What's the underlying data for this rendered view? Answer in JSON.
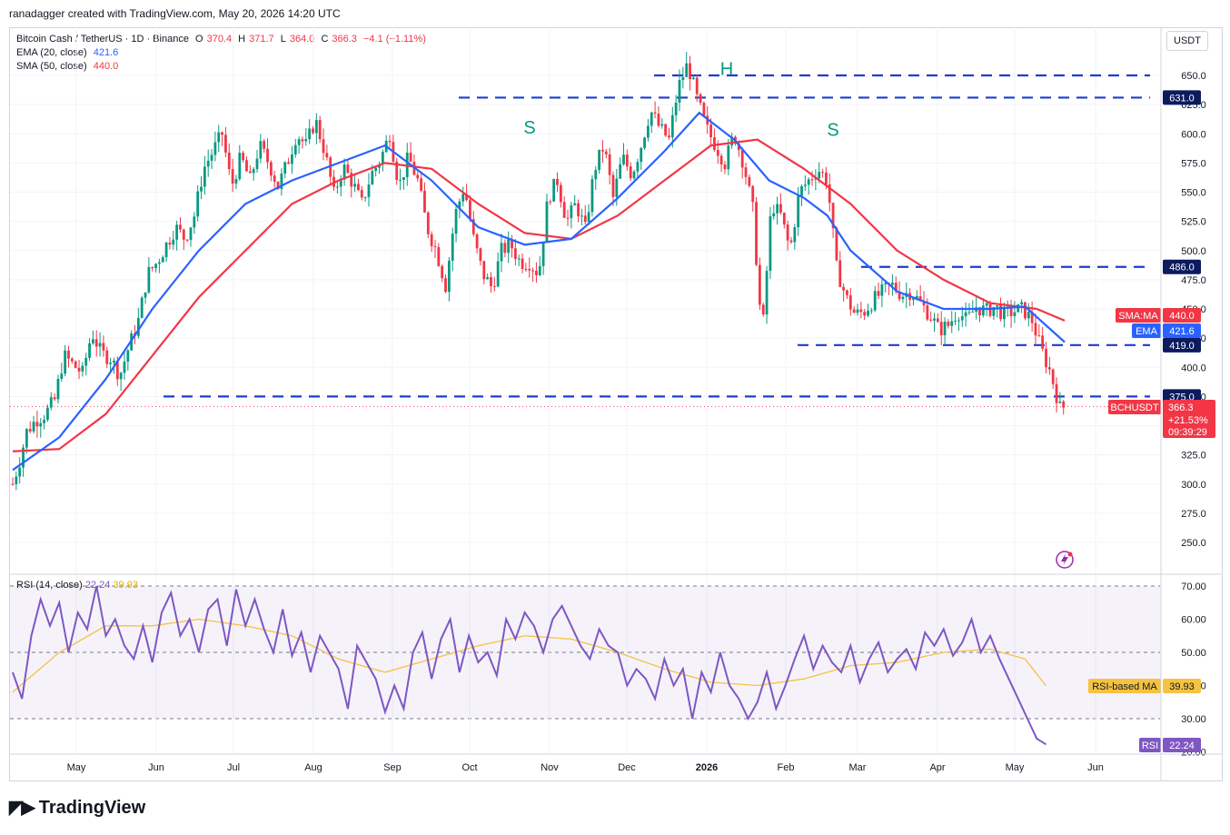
{
  "credit": "ranadagger created with TradingView.com, May 20, 2026 14:20 UTC",
  "legend": {
    "symbol": "Bitcoin Cash / TetherUS · 1D · Binance",
    "o_label": "O",
    "o": "370.4",
    "h_label": "H",
    "h": "371.7",
    "l_label": "L",
    "l": "364.0",
    "c_label": "C",
    "c": "366.3",
    "change": "−4.1 (−1.11%)",
    "ema_label": "EMA (20, close)",
    "ema_value": "421.6",
    "sma_label": "SMA (50, close)",
    "sma_value": "440.0"
  },
  "rsi_legend": {
    "label": "RSI (14, close)",
    "rsi_value": "22.24",
    "ma_value": "39.93"
  },
  "currency": "USDT",
  "logo": "TradingView",
  "colors": {
    "up": "#089981",
    "down": "#f23645",
    "ema": "#2962ff",
    "sma": "#f23645",
    "rsi": "#7e57c2",
    "rsi_ma": "#f5c242",
    "level": "#1e3ccf"
  },
  "chart_data": {
    "type": "candlestick",
    "title": "Bitcoin Cash / TetherUS · 1D · Binance",
    "price_axis": {
      "range": [
        240,
        670
      ],
      "ticks": [
        "650.0",
        "625.0",
        "600.0",
        "575.0",
        "550.0",
        "525.0",
        "500.0",
        "475.0",
        "450.0",
        "425.0",
        "400.0",
        "375.0",
        "350.0",
        "325.0",
        "300.0",
        "275.0",
        "250.0"
      ]
    },
    "time_axis": {
      "ticks": [
        "May",
        "Jun",
        "Jul",
        "Aug",
        "Sep",
        "Oct",
        "Nov",
        "Dec",
        "2026",
        "Feb",
        "Mar",
        "Apr",
        "May",
        "Jun"
      ]
    },
    "levels": [
      {
        "value": 650,
        "label": ""
      },
      {
        "value": 631.0,
        "label": "631.0"
      },
      {
        "value": 486.0,
        "label": "486.0"
      },
      {
        "value": 419.0,
        "label": "419.0"
      },
      {
        "value": 375.0,
        "label": "375.0"
      }
    ],
    "pattern_labels": [
      {
        "text": "S",
        "near": "Oct-Nov",
        "price": 605
      },
      {
        "text": "H",
        "near": "2026",
        "price": 655
      },
      {
        "text": "S",
        "near": "Feb",
        "price": 603
      }
    ],
    "close_path": [
      [
        0,
        300
      ],
      [
        6,
        320
      ],
      [
        12,
        345
      ],
      [
        20,
        355
      ],
      [
        28,
        360
      ],
      [
        36,
        372
      ],
      [
        44,
        410
      ],
      [
        52,
        402
      ],
      [
        60,
        395
      ],
      [
        68,
        430
      ],
      [
        76,
        412
      ],
      [
        84,
        408
      ],
      [
        92,
        393
      ],
      [
        100,
        418
      ],
      [
        108,
        440
      ],
      [
        116,
        480
      ],
      [
        124,
        490
      ],
      [
        132,
        505
      ],
      [
        140,
        520
      ],
      [
        148,
        510
      ],
      [
        156,
        530
      ],
      [
        164,
        570
      ],
      [
        172,
        585
      ],
      [
        180,
        600
      ],
      [
        188,
        555
      ],
      [
        196,
        580
      ],
      [
        204,
        560
      ],
      [
        212,
        590
      ],
      [
        220,
        575
      ],
      [
        228,
        555
      ],
      [
        236,
        575
      ],
      [
        244,
        600
      ],
      [
        252,
        590
      ],
      [
        260,
        612
      ],
      [
        268,
        585
      ],
      [
        276,
        548
      ],
      [
        284,
        572
      ],
      [
        292,
        558
      ],
      [
        300,
        540
      ],
      [
        308,
        565
      ],
      [
        316,
        578
      ],
      [
        324,
        600
      ],
      [
        332,
        555
      ],
      [
        340,
        580
      ],
      [
        348,
        560
      ],
      [
        356,
        520
      ],
      [
        364,
        500
      ],
      [
        372,
        470
      ],
      [
        380,
        530
      ],
      [
        388,
        555
      ],
      [
        396,
        510
      ],
      [
        404,
        480
      ],
      [
        412,
        468
      ],
      [
        420,
        500
      ],
      [
        428,
        505
      ],
      [
        436,
        490
      ],
      [
        444,
        490
      ],
      [
        452,
        480
      ],
      [
        460,
        545
      ],
      [
        468,
        560
      ],
      [
        476,
        525
      ],
      [
        484,
        540
      ],
      [
        492,
        518
      ],
      [
        500,
        570
      ],
      [
        508,
        590
      ],
      [
        516,
        545
      ],
      [
        524,
        580
      ],
      [
        532,
        565
      ],
      [
        540,
        590
      ],
      [
        548,
        620
      ],
      [
        556,
        605
      ],
      [
        564,
        595
      ],
      [
        572,
        640
      ],
      [
        580,
        660
      ],
      [
        588,
        630
      ],
      [
        596,
        605
      ],
      [
        604,
        590
      ],
      [
        612,
        575
      ],
      [
        620,
        600
      ],
      [
        628,
        575
      ],
      [
        636,
        535
      ],
      [
        644,
        425
      ],
      [
        652,
        540
      ],
      [
        660,
        530
      ],
      [
        668,
        500
      ],
      [
        676,
        550
      ],
      [
        684,
        560
      ],
      [
        692,
        570
      ],
      [
        700,
        560
      ],
      [
        708,
        485
      ],
      [
        716,
        460
      ],
      [
        724,
        445
      ],
      [
        732,
        448
      ],
      [
        740,
        458
      ],
      [
        748,
        465
      ],
      [
        756,
        470
      ],
      [
        764,
        462
      ],
      [
        772,
        465
      ],
      [
        780,
        455
      ],
      [
        788,
        445
      ],
      [
        796,
        432
      ],
      [
        804,
        436
      ],
      [
        812,
        448
      ],
      [
        820,
        440
      ],
      [
        828,
        452
      ],
      [
        836,
        448
      ],
      [
        844,
        452
      ],
      [
        852,
        445
      ],
      [
        860,
        448
      ],
      [
        868,
        450
      ],
      [
        876,
        440
      ],
      [
        884,
        415
      ],
      [
        892,
        395
      ],
      [
        900,
        365
      ],
      [
        904,
        366.3
      ]
    ],
    "ema20_path": [
      [
        0,
        312
      ],
      [
        40,
        340
      ],
      [
        80,
        390
      ],
      [
        120,
        450
      ],
      [
        160,
        500
      ],
      [
        200,
        540
      ],
      [
        240,
        560
      ],
      [
        280,
        575
      ],
      [
        320,
        590
      ],
      [
        360,
        560
      ],
      [
        400,
        520
      ],
      [
        440,
        505
      ],
      [
        480,
        510
      ],
      [
        520,
        545
      ],
      [
        560,
        585
      ],
      [
        590,
        618
      ],
      [
        620,
        595
      ],
      [
        650,
        560
      ],
      [
        680,
        545
      ],
      [
        700,
        530
      ],
      [
        720,
        500
      ],
      [
        760,
        465
      ],
      [
        800,
        450
      ],
      [
        840,
        450
      ],
      [
        870,
        452
      ],
      [
        904,
        421.6
      ]
    ],
    "sma50_path": [
      [
        0,
        328
      ],
      [
        40,
        330
      ],
      [
        80,
        360
      ],
      [
        120,
        410
      ],
      [
        160,
        460
      ],
      [
        200,
        500
      ],
      [
        240,
        540
      ],
      [
        280,
        560
      ],
      [
        320,
        575
      ],
      [
        360,
        570
      ],
      [
        400,
        540
      ],
      [
        440,
        515
      ],
      [
        480,
        510
      ],
      [
        520,
        530
      ],
      [
        560,
        560
      ],
      [
        600,
        590
      ],
      [
        640,
        595
      ],
      [
        680,
        570
      ],
      [
        720,
        540
      ],
      [
        760,
        500
      ],
      [
        800,
        475
      ],
      [
        840,
        455
      ],
      [
        880,
        450
      ],
      [
        904,
        440.0
      ]
    ],
    "rsi": {
      "range": [
        15,
        75
      ],
      "ticks": [
        "70.00",
        "60.00",
        "50.00",
        "40.00",
        "30.00",
        "20.00"
      ],
      "bands": [
        70,
        50,
        30
      ],
      "rsi_path": [
        [
          0,
          44
        ],
        [
          8,
          36
        ],
        [
          16,
          55
        ],
        [
          24,
          66
        ],
        [
          32,
          58
        ],
        [
          40,
          65
        ],
        [
          48,
          50
        ],
        [
          56,
          62
        ],
        [
          64,
          57
        ],
        [
          72,
          70
        ],
        [
          80,
          55
        ],
        [
          88,
          60
        ],
        [
          96,
          52
        ],
        [
          104,
          48
        ],
        [
          112,
          58
        ],
        [
          120,
          47
        ],
        [
          128,
          62
        ],
        [
          136,
          68
        ],
        [
          144,
          55
        ],
        [
          152,
          60
        ],
        [
          160,
          50
        ],
        [
          168,
          63
        ],
        [
          176,
          66
        ],
        [
          184,
          52
        ],
        [
          192,
          69
        ],
        [
          200,
          58
        ],
        [
          208,
          66
        ],
        [
          216,
          57
        ],
        [
          224,
          50
        ],
        [
          232,
          63
        ],
        [
          240,
          49
        ],
        [
          248,
          56
        ],
        [
          256,
          44
        ],
        [
          264,
          55
        ],
        [
          272,
          50
        ],
        [
          280,
          45
        ],
        [
          288,
          33
        ],
        [
          296,
          52
        ],
        [
          304,
          47
        ],
        [
          312,
          42
        ],
        [
          320,
          32
        ],
        [
          328,
          40
        ],
        [
          336,
          33
        ],
        [
          344,
          50
        ],
        [
          352,
          56
        ],
        [
          360,
          42
        ],
        [
          368,
          54
        ],
        [
          376,
          60
        ],
        [
          384,
          44
        ],
        [
          392,
          55
        ],
        [
          400,
          47
        ],
        [
          408,
          50
        ],
        [
          416,
          43
        ],
        [
          424,
          60
        ],
        [
          432,
          54
        ],
        [
          440,
          62
        ],
        [
          448,
          58
        ],
        [
          456,
          50
        ],
        [
          464,
          60
        ],
        [
          472,
          64
        ],
        [
          480,
          58
        ],
        [
          488,
          52
        ],
        [
          496,
          48
        ],
        [
          504,
          57
        ],
        [
          512,
          52
        ],
        [
          520,
          50
        ],
        [
          528,
          40
        ],
        [
          536,
          45
        ],
        [
          544,
          42
        ],
        [
          552,
          36
        ],
        [
          560,
          48
        ],
        [
          568,
          40
        ],
        [
          576,
          45
        ],
        [
          584,
          30
        ],
        [
          592,
          44
        ],
        [
          600,
          38
        ],
        [
          608,
          50
        ],
        [
          616,
          40
        ],
        [
          624,
          36
        ],
        [
          632,
          30
        ],
        [
          640,
          35
        ],
        [
          648,
          44
        ],
        [
          656,
          33
        ],
        [
          664,
          40
        ],
        [
          672,
          48
        ],
        [
          680,
          55
        ],
        [
          688,
          45
        ],
        [
          696,
          52
        ],
        [
          704,
          47
        ],
        [
          712,
          44
        ],
        [
          720,
          52
        ],
        [
          728,
          41
        ],
        [
          736,
          48
        ],
        [
          744,
          53
        ],
        [
          752,
          44
        ],
        [
          760,
          48
        ],
        [
          768,
          51
        ],
        [
          776,
          45
        ],
        [
          784,
          56
        ],
        [
          792,
          52
        ],
        [
          800,
          57
        ],
        [
          808,
          49
        ],
        [
          816,
          53
        ],
        [
          824,
          60
        ],
        [
          832,
          50
        ],
        [
          840,
          55
        ],
        [
          848,
          48
        ],
        [
          856,
          42
        ],
        [
          864,
          36
        ],
        [
          872,
          30
        ],
        [
          880,
          24
        ],
        [
          888,
          22.24
        ]
      ],
      "ma_path": [
        [
          0,
          38
        ],
        [
          40,
          50
        ],
        [
          80,
          58
        ],
        [
          120,
          58
        ],
        [
          160,
          60
        ],
        [
          200,
          58
        ],
        [
          240,
          55
        ],
        [
          280,
          48
        ],
        [
          320,
          44
        ],
        [
          360,
          48
        ],
        [
          400,
          52
        ],
        [
          440,
          55
        ],
        [
          480,
          54
        ],
        [
          520,
          50
        ],
        [
          560,
          45
        ],
        [
          600,
          41
        ],
        [
          640,
          40
        ],
        [
          680,
          42
        ],
        [
          720,
          46
        ],
        [
          760,
          47
        ],
        [
          800,
          50
        ],
        [
          840,
          51
        ],
        [
          870,
          48
        ],
        [
          888,
          39.93
        ]
      ]
    }
  },
  "badges": {
    "sma_ma_label": "SMA:MA",
    "sma_ma_value": "440.0",
    "ema_label": "EMA",
    "ema_value": "421.6",
    "symbol_label": "BCHUSDT",
    "price": "366.3",
    "pct": "+21.53%",
    "countdown": "09:39:29",
    "rsi_ma_label": "RSI-based MA",
    "rsi_ma_value": "39.93",
    "rsi_label": "RSI",
    "rsi_value": "22.24"
  }
}
